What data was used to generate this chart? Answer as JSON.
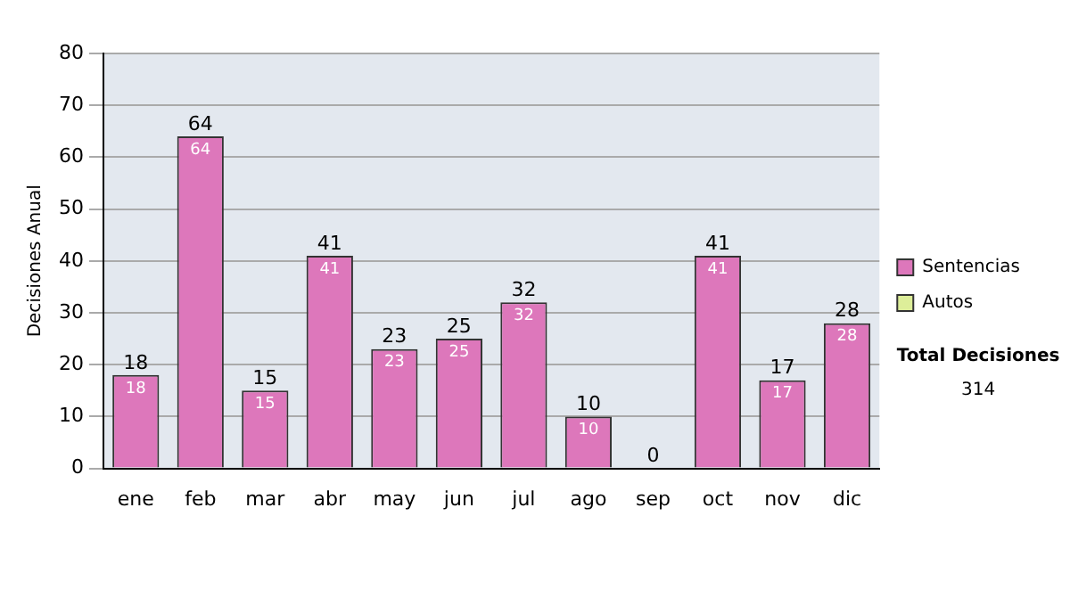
{
  "chart_data": {
    "type": "bar",
    "stacked": true,
    "ylabel": "Decisiones Anual",
    "categories": [
      "ene",
      "feb",
      "mar",
      "abr",
      "may",
      "jun",
      "jul",
      "ago",
      "sep",
      "oct",
      "nov",
      "dic"
    ],
    "series": [
      {
        "name": "Sentencias",
        "color": "#dd77bb",
        "values": [
          18,
          64,
          15,
          41,
          23,
          25,
          32,
          10,
          0,
          41,
          17,
          28
        ],
        "value_labels": [
          "18",
          "64",
          "15",
          "41",
          "23",
          "25",
          "32",
          "10",
          null,
          "41",
          "17",
          "28"
        ]
      },
      {
        "name": "Autos",
        "color": "#ddee99",
        "values": [
          0,
          0,
          0,
          0,
          0,
          0,
          0,
          0,
          0,
          0,
          0,
          0
        ]
      }
    ],
    "totals": [
      "18",
      "64",
      "15",
      "41",
      "23",
      "25",
      "32",
      "10",
      "0",
      "41",
      "17",
      "28"
    ],
    "ylim": [
      0,
      80
    ],
    "yticks": [
      0,
      10,
      20,
      30,
      40,
      50,
      60,
      70,
      80
    ],
    "grid": "y",
    "legend": "right",
    "annotations": [
      "Total Decisiones",
      "314"
    ]
  }
}
